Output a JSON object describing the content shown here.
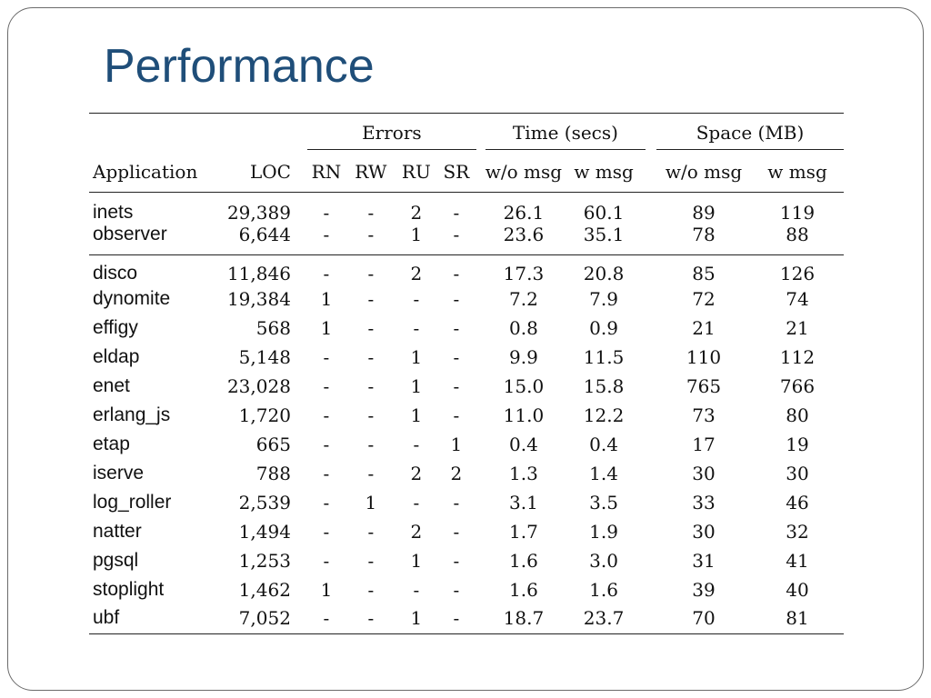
{
  "slide": {
    "title": "Performance"
  },
  "table": {
    "group_headers": {
      "errors": "Errors",
      "time": "Time (secs)",
      "space": "Space (MB)"
    },
    "columns": {
      "application": "Application",
      "loc": "LOC",
      "rn": "RN",
      "rw": "RW",
      "ru": "RU",
      "sr": "SR",
      "time_wo": "w/o msg",
      "time_w": "w msg",
      "space_wo": "w/o msg",
      "space_w": "w msg"
    },
    "group1": [
      {
        "app": "inets",
        "loc": "29,389",
        "rn": "-",
        "rw": "-",
        "ru": "2",
        "sr": "-",
        "time_wo": "26.1",
        "time_w": "60.1",
        "space_wo": "89",
        "space_w": "119"
      },
      {
        "app": "observer",
        "loc": "6,644",
        "rn": "-",
        "rw": "-",
        "ru": "1",
        "sr": "-",
        "time_wo": "23.6",
        "time_w": "35.1",
        "space_wo": "78",
        "space_w": "88"
      }
    ],
    "group2": [
      {
        "app": "disco",
        "loc": "11,846",
        "rn": "-",
        "rw": "-",
        "ru": "2",
        "sr": "-",
        "time_wo": "17.3",
        "time_w": "20.8",
        "space_wo": "85",
        "space_w": "126"
      },
      {
        "app": "dynomite",
        "loc": "19,384",
        "rn": "1",
        "rw": "-",
        "ru": "-",
        "sr": "-",
        "time_wo": "7.2",
        "time_w": "7.9",
        "space_wo": "72",
        "space_w": "74"
      },
      {
        "app": "effigy",
        "loc": "568",
        "rn": "1",
        "rw": "-",
        "ru": "-",
        "sr": "-",
        "time_wo": "0.8",
        "time_w": "0.9",
        "space_wo": "21",
        "space_w": "21"
      },
      {
        "app": "eldap",
        "loc": "5,148",
        "rn": "-",
        "rw": "-",
        "ru": "1",
        "sr": "-",
        "time_wo": "9.9",
        "time_w": "11.5",
        "space_wo": "110",
        "space_w": "112"
      },
      {
        "app": "enet",
        "loc": "23,028",
        "rn": "-",
        "rw": "-",
        "ru": "1",
        "sr": "-",
        "time_wo": "15.0",
        "time_w": "15.8",
        "space_wo": "765",
        "space_w": "766"
      },
      {
        "app": "erlang_js",
        "loc": "1,720",
        "rn": "-",
        "rw": "-",
        "ru": "1",
        "sr": "-",
        "time_wo": "11.0",
        "time_w": "12.2",
        "space_wo": "73",
        "space_w": "80"
      },
      {
        "app": "etap",
        "loc": "665",
        "rn": "-",
        "rw": "-",
        "ru": "-",
        "sr": "1",
        "time_wo": "0.4",
        "time_w": "0.4",
        "space_wo": "17",
        "space_w": "19"
      },
      {
        "app": "iserve",
        "loc": "788",
        "rn": "-",
        "rw": "-",
        "ru": "2",
        "sr": "2",
        "time_wo": "1.3",
        "time_w": "1.4",
        "space_wo": "30",
        "space_w": "30"
      },
      {
        "app": "log_roller",
        "loc": "2,539",
        "rn": "-",
        "rw": "1",
        "ru": "-",
        "sr": "-",
        "time_wo": "3.1",
        "time_w": "3.5",
        "space_wo": "33",
        "space_w": "46"
      },
      {
        "app": "natter",
        "loc": "1,494",
        "rn": "-",
        "rw": "-",
        "ru": "2",
        "sr": "-",
        "time_wo": "1.7",
        "time_w": "1.9",
        "space_wo": "30",
        "space_w": "32"
      },
      {
        "app": "pgsql",
        "loc": "1,253",
        "rn": "-",
        "rw": "-",
        "ru": "1",
        "sr": "-",
        "time_wo": "1.6",
        "time_w": "3.0",
        "space_wo": "31",
        "space_w": "41"
      },
      {
        "app": "stoplight",
        "loc": "1,462",
        "rn": "1",
        "rw": "-",
        "ru": "-",
        "sr": "-",
        "time_wo": "1.6",
        "time_w": "1.6",
        "space_wo": "39",
        "space_w": "40"
      },
      {
        "app": "ubf",
        "loc": "7,052",
        "rn": "-",
        "rw": "-",
        "ru": "1",
        "sr": "-",
        "time_wo": "18.7",
        "time_w": "23.7",
        "space_wo": "70",
        "space_w": "81"
      }
    ]
  }
}
